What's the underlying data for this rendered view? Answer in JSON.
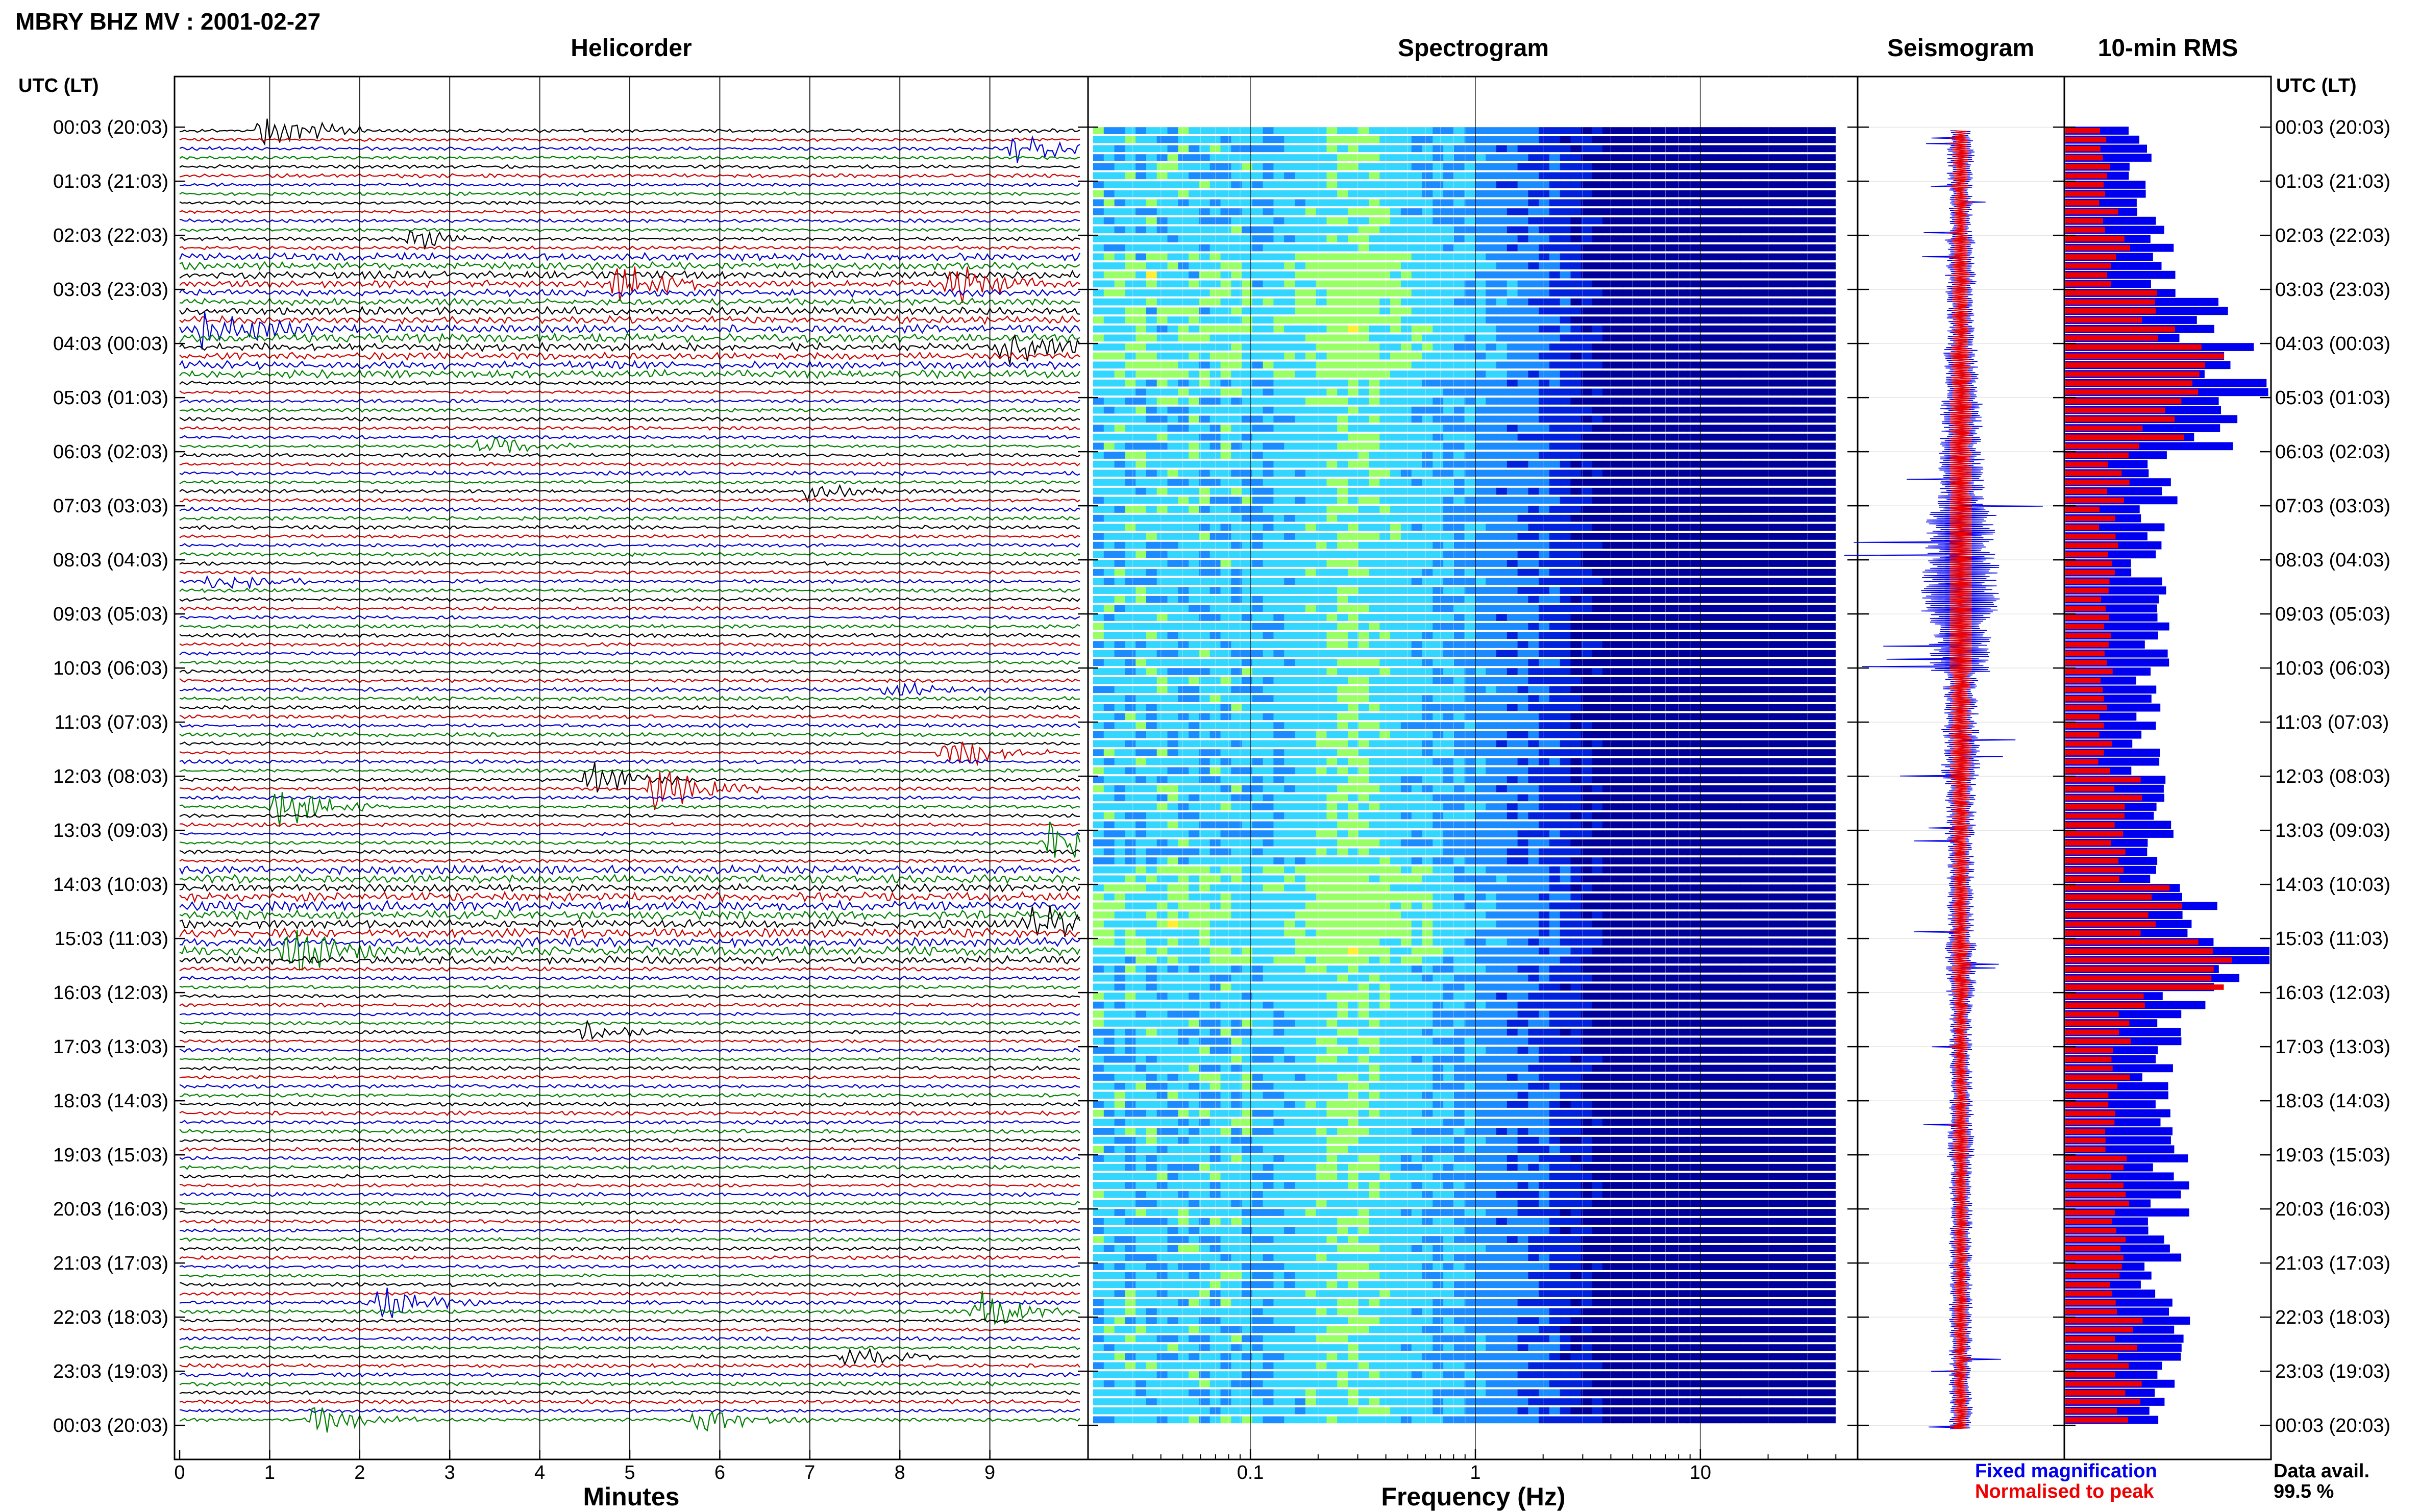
{
  "header": {
    "title": "MBRY BHZ MV : 2001-02-27"
  },
  "panels": {
    "helicorder": "Helicorder",
    "spectrogram": "Spectrogram",
    "seismogram": "Seismogram",
    "rms": "10-min RMS"
  },
  "axis_left_label": "UTC (LT)",
  "axis_right_label": "UTC (LT)",
  "time_labels": [
    "00:03 (20:03)",
    "01:03 (21:03)",
    "02:03 (22:03)",
    "03:03 (23:03)",
    "04:03 (00:03)",
    "05:03 (01:03)",
    "06:03 (02:03)",
    "07:03 (03:03)",
    "08:03 (04:03)",
    "09:03 (05:03)",
    "10:03 (06:03)",
    "11:03 (07:03)",
    "12:03 (08:03)",
    "13:03 (09:03)",
    "14:03 (10:03)",
    "15:03 (11:03)",
    "16:03 (12:03)",
    "17:03 (13:03)",
    "18:03 (14:03)",
    "19:03 (15:03)",
    "20:03 (16:03)",
    "21:03 (17:03)",
    "22:03 (18:03)",
    "23:03 (19:03)",
    "00:03 (20:03)"
  ],
  "legend": {
    "fixed": "Fixed magnification",
    "normalised": "Normalised to peak",
    "fixed_color": "#0000ee",
    "normalised_color": "#ee0000"
  },
  "data_avail": {
    "label": "Data avail.",
    "value": "99.5 %"
  },
  "chart_data": [
    {
      "type": "line",
      "title": "Helicorder",
      "xlabel": "Minutes",
      "xlim": [
        0,
        10
      ],
      "x_ticks": [
        "0",
        "1",
        "2",
        "3",
        "4",
        "5",
        "6",
        "7",
        "8",
        "9"
      ],
      "rows": 144,
      "row_minutes": 10,
      "trace_colors": [
        "#000000",
        "#cc0000",
        "#0000cc",
        "#008000"
      ],
      "events": [
        {
          "row": 0,
          "minute": 0.95,
          "amp": 3.0
        },
        {
          "row": 2,
          "minute": 9.3,
          "amp": 2.5
        },
        {
          "row": 12,
          "minute": 2.6,
          "amp": 1.5
        },
        {
          "row": 17,
          "minute": 4.9,
          "amp": 2.5
        },
        {
          "row": 17,
          "minute": 8.6,
          "amp": 2.5
        },
        {
          "row": 22,
          "minute": 0.3,
          "amp": 3.5
        },
        {
          "row": 24,
          "minute": 9.2,
          "amp": 3.0
        },
        {
          "row": 35,
          "minute": 3.4,
          "amp": 1.5
        },
        {
          "row": 40,
          "minute": 7.0,
          "amp": 1.5
        },
        {
          "row": 50,
          "minute": 0.4,
          "amp": 1.5
        },
        {
          "row": 62,
          "minute": 7.9,
          "amp": 1.3
        },
        {
          "row": 69,
          "minute": 8.5,
          "amp": 3.0
        },
        {
          "row": 72,
          "minute": 4.6,
          "amp": 3.0
        },
        {
          "row": 73,
          "minute": 5.3,
          "amp": 4.0
        },
        {
          "row": 75,
          "minute": 1.1,
          "amp": 3.0
        },
        {
          "row": 79,
          "minute": 9.7,
          "amp": 3.5
        },
        {
          "row": 88,
          "minute": 9.5,
          "amp": 3.0
        },
        {
          "row": 91,
          "minute": 1.2,
          "amp": 3.5
        },
        {
          "row": 100,
          "minute": 4.5,
          "amp": 1.3
        },
        {
          "row": 130,
          "minute": 2.2,
          "amp": 2.5
        },
        {
          "row": 131,
          "minute": 8.9,
          "amp": 2.5
        },
        {
          "row": 136,
          "minute": 7.4,
          "amp": 1.5
        },
        {
          "row": 143,
          "minute": 1.5,
          "amp": 2.0
        },
        {
          "row": 143,
          "minute": 5.8,
          "amp": 2.0
        }
      ],
      "noisy_bands": [
        {
          "from_row": 14,
          "to_row": 27,
          "level": 2.2
        },
        {
          "from_row": 82,
          "to_row": 92,
          "level": 2.4
        }
      ]
    },
    {
      "type": "heatmap",
      "title": "Spectrogram",
      "xlabel": "Frequency (Hz)",
      "x_scale": "log",
      "xlim": [
        0.02,
        50
      ],
      "x_ticks": [
        0.1,
        1,
        10
      ],
      "x_tick_labels": [
        "0.1",
        "1",
        "10"
      ],
      "peak_band_hz": [
        0.15,
        0.5
      ],
      "rows": 144,
      "colormap": [
        "#00009a",
        "#0022dd",
        "#1a8cff",
        "#33d6ff",
        "#99ff66",
        "#ffee33",
        "#ff9900"
      ]
    },
    {
      "type": "line",
      "title": "Seismogram",
      "series": [
        {
          "name": "Fixed magnification",
          "color": "#0000ee"
        },
        {
          "name": "Normalised to peak",
          "color": "#ee0000"
        }
      ],
      "rows": 144,
      "rms_profile": [
        0.35,
        0.3,
        0.4,
        0.35,
        0.45,
        0.55,
        0.6,
        0.9,
        1.0,
        0.8,
        0.45,
        0.5,
        0.4,
        0.35,
        0.35,
        0.4,
        0.3,
        0.3,
        0.35,
        0.3,
        0.3,
        0.3,
        0.3,
        0.3
      ]
    },
    {
      "type": "bar",
      "title": "10-min RMS",
      "series": [
        {
          "name": "Fixed magnification",
          "color": "#0000ee"
        },
        {
          "name": "Normalised to peak",
          "color": "#ee0000"
        }
      ],
      "rows": 144,
      "hourly_fixed": [
        0.35,
        0.4,
        0.45,
        0.65,
        0.85,
        0.7,
        0.45,
        0.45,
        0.4,
        0.45,
        0.4,
        0.4,
        0.5,
        0.45,
        0.6,
        0.85,
        0.55,
        0.45,
        0.45,
        0.5,
        0.5,
        0.45,
        0.5,
        0.5
      ],
      "hourly_normalised": [
        0.2,
        0.2,
        0.25,
        0.45,
        0.6,
        0.45,
        0.25,
        0.2,
        0.2,
        0.2,
        0.2,
        0.2,
        0.3,
        0.25,
        0.45,
        0.65,
        0.3,
        0.25,
        0.2,
        0.25,
        0.25,
        0.25,
        0.3,
        0.3
      ]
    }
  ]
}
